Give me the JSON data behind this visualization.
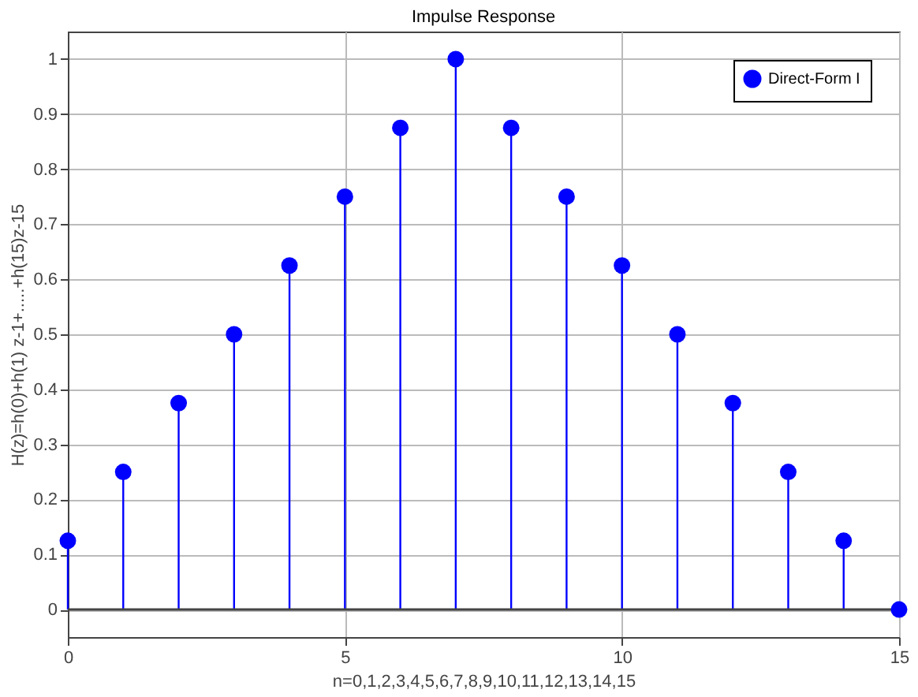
{
  "chart_data": {
    "type": "lollipop",
    "title": "Impulse Response",
    "xlabel": "n=0,1,2,3,4,5,6,7,8,9,10,11,12,13,14,15",
    "ylabel": "H(z)=h(0)+h(1) z-1+.....+h(15)z-15",
    "x": [
      0,
      1,
      2,
      3,
      4,
      5,
      6,
      7,
      8,
      9,
      10,
      11,
      12,
      13,
      14,
      15
    ],
    "series": [
      {
        "name": "Direct-Form I",
        "color": "#0000ff",
        "values": [
          0.125,
          0.25,
          0.375,
          0.5,
          0.625,
          0.75,
          0.875,
          1,
          0.875,
          0.75,
          0.625,
          0.5,
          0.375,
          0.25,
          0.125,
          0
        ]
      }
    ],
    "xlim": [
      0,
      15
    ],
    "xticks": [
      0,
      5,
      10,
      15
    ],
    "ylim": [
      -0.05,
      1.05
    ],
    "yticks": [
      0,
      0.1,
      0.2,
      0.3,
      0.4,
      0.5,
      0.6,
      0.7,
      0.8,
      0.9,
      1
    ],
    "grid": true,
    "legend": "top right",
    "marker": "circle"
  }
}
